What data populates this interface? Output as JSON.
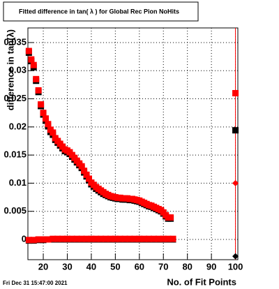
{
  "chart_data": {
    "type": "scatter",
    "title": "Fitted difference in tan( λ ) for Global Rec Pion NoHits",
    "x_label": "No. of Fit Points",
    "y_label": "difference in tan(λ)",
    "footer": "Fri Dec 31 15:47:00 2021",
    "xlim": [
      13.6,
      101
    ],
    "ylim": [
      -0.0036,
      0.0376
    ],
    "xticks": [
      20,
      30,
      40,
      50,
      60,
      70,
      80,
      90,
      100
    ],
    "yticks": [
      0,
      0.005,
      0.01,
      0.015,
      0.02,
      0.025,
      0.03,
      0.035
    ],
    "grid": true,
    "series": [
      {
        "color": "#000000",
        "marker": "square",
        "x": [
          14,
          15,
          16,
          17,
          18,
          19,
          20,
          21,
          22,
          23,
          24,
          25,
          26,
          27,
          28,
          29,
          30,
          31,
          32,
          33,
          34,
          35,
          36,
          37,
          38,
          39,
          40,
          41,
          42,
          43,
          44,
          45,
          46,
          47,
          48,
          49,
          50,
          51,
          52,
          53,
          54,
          55,
          56,
          57,
          58,
          59,
          60,
          61,
          62,
          63,
          64,
          65,
          66,
          67,
          68,
          69,
          70,
          71,
          72,
          73
        ],
        "values": [
          0.0332,
          0.0317,
          0.0306,
          0.0282,
          0.0262,
          0.0237,
          0.0222,
          0.0211,
          0.0201,
          0.0191,
          0.0186,
          0.0177,
          0.0172,
          0.0167,
          0.0162,
          0.0157,
          0.0155,
          0.0152,
          0.0147,
          0.0142,
          0.0137,
          0.0132,
          0.0127,
          0.0119,
          0.0112,
          0.0105,
          0.0098,
          0.0094,
          0.009,
          0.0087,
          0.0084,
          0.0081,
          0.0079,
          0.0077,
          0.0075,
          0.0074,
          0.0073,
          0.0072,
          0.0072,
          0.0071,
          0.0071,
          0.0071,
          0.007,
          0.007,
          0.0069,
          0.0068,
          0.0067,
          0.0065,
          0.0063,
          0.0061,
          0.0059,
          0.0058,
          0.0056,
          0.0054,
          0.0052,
          0.005,
          0.0046,
          0.0041,
          0.0037,
          0.0037
        ]
      },
      {
        "color": "#ff0000",
        "marker": "square",
        "x": [
          14,
          15,
          16,
          17,
          18,
          19,
          20,
          21,
          22,
          23,
          24,
          25,
          26,
          27,
          28,
          29,
          30,
          31,
          32,
          33,
          34,
          35,
          36,
          37,
          38,
          39,
          40,
          41,
          42,
          43,
          44,
          45,
          46,
          47,
          48,
          49,
          50,
          51,
          52,
          53,
          54,
          55,
          56,
          57,
          58,
          59,
          60,
          61,
          62,
          63,
          64,
          65,
          66,
          67,
          68,
          69,
          70,
          71,
          72,
          73
        ],
        "values": [
          0.0335,
          0.032,
          0.031,
          0.0285,
          0.0265,
          0.024,
          0.0225,
          0.0215,
          0.0205,
          0.0195,
          0.019,
          0.018,
          0.0175,
          0.017,
          0.0165,
          0.016,
          0.0158,
          0.0155,
          0.015,
          0.0145,
          0.014,
          0.0135,
          0.013,
          0.0122,
          0.0115,
          0.0108,
          0.0101,
          0.0097,
          0.0093,
          0.009,
          0.0087,
          0.0084,
          0.0081,
          0.0079,
          0.0077,
          0.0076,
          0.0075,
          0.0074,
          0.0074,
          0.0073,
          0.0073,
          0.0073,
          0.0072,
          0.0072,
          0.0071,
          0.007,
          0.0069,
          0.0067,
          0.0065,
          0.0063,
          0.0061,
          0.006,
          0.0058,
          0.0056,
          0.0054,
          0.0052,
          0.0048,
          0.0043,
          0.0039,
          0.0039
        ]
      },
      {
        "color": "#000000",
        "marker": "square",
        "x": [
          14,
          16,
          18,
          20,
          22,
          24,
          26,
          28,
          30,
          32,
          34,
          36,
          38,
          40,
          42,
          44,
          46,
          48,
          50,
          52,
          54,
          56,
          58,
          60,
          62,
          64,
          66,
          68,
          70,
          72,
          74
        ],
        "values": [
          -0.0002,
          -0.0002,
          -0.0001,
          -0.0001,
          0,
          0,
          0,
          0,
          0,
          0,
          0,
          0,
          0,
          0,
          0,
          0,
          0,
          0,
          0,
          0,
          0,
          0,
          0,
          0,
          0,
          0,
          0,
          0,
          0,
          0,
          0
        ]
      },
      {
        "color": "#ff0000",
        "marker": "square",
        "x": [
          14,
          16,
          18,
          20,
          22,
          24,
          26,
          28,
          30,
          32,
          34,
          36,
          38,
          40,
          42,
          44,
          46,
          48,
          50,
          52,
          54,
          56,
          58,
          60,
          62,
          64,
          66,
          68,
          70,
          72,
          74
        ],
        "values": [
          -0.0001,
          -0.0001,
          0,
          0,
          0,
          0.0001,
          0.0001,
          0.0001,
          0.0001,
          0.0001,
          0.0001,
          0.0001,
          0.0001,
          0.0001,
          0.0001,
          0.0001,
          0.0001,
          0.0001,
          0.0001,
          0.0001,
          0.0001,
          0.0001,
          0.0001,
          0.0001,
          0.0001,
          0.0001,
          0.0001,
          0.0001,
          0.0001,
          0.0001,
          0.0001
        ]
      },
      {
        "color": "#ff0000",
        "marker": "square",
        "x": [
          100
        ],
        "values": [
          0.026
        ]
      },
      {
        "color": "#000000",
        "marker": "square",
        "x": [
          100
        ],
        "values": [
          0.0194
        ]
      },
      {
        "color": "#ff0000",
        "marker": "diamond",
        "x": [
          100
        ],
        "values": [
          0.01
        ]
      },
      {
        "color": "#000000",
        "marker": "diamond",
        "x": [
          100
        ],
        "values": [
          -0.003
        ]
      }
    ]
  }
}
